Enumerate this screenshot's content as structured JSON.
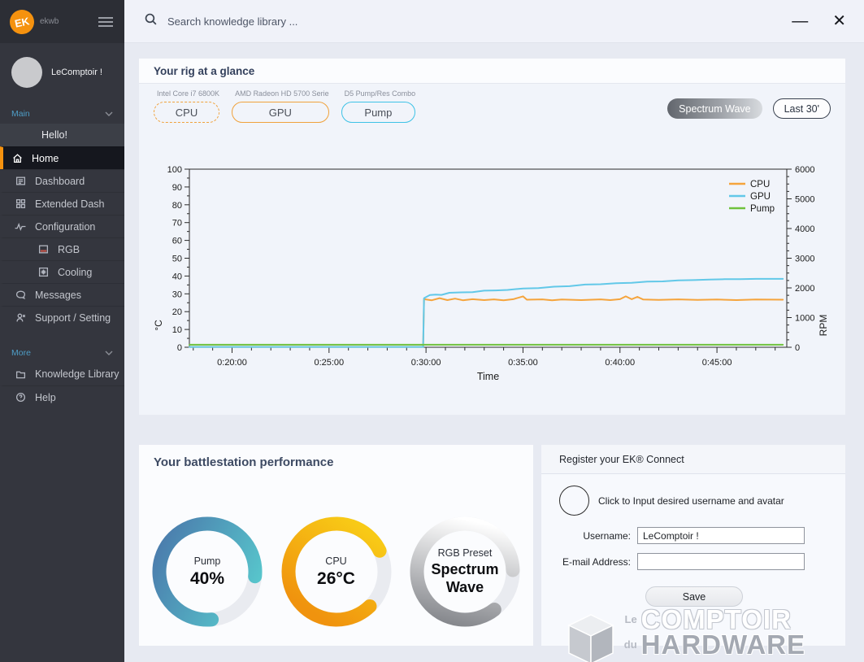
{
  "window": {
    "minimize_glyph": "—",
    "close_glyph": "✕"
  },
  "topbar": {
    "search_placeholder": "Search knowledge library ..."
  },
  "sidebar": {
    "brand": {
      "logo_text": "EK",
      "name": "ekwb"
    },
    "profile": {
      "name": "LeComptoir !"
    },
    "sections": [
      {
        "label": "Main",
        "items": [
          {
            "label": "Hello!"
          },
          {
            "label": "Home"
          },
          {
            "label": "Dashboard"
          },
          {
            "label": "Extended Dash"
          },
          {
            "label": "Configuration"
          },
          {
            "label": "RGB"
          },
          {
            "label": "Cooling"
          },
          {
            "label": "Messages"
          },
          {
            "label": "Support / Setting"
          }
        ]
      },
      {
        "label": "More",
        "items": [
          {
            "label": "Knowledge Library"
          },
          {
            "label": "Help"
          }
        ]
      }
    ]
  },
  "rig": {
    "title": "Your rig at a glance",
    "devices": [
      {
        "name": "Intel Core i7 6800K",
        "button": "CPU"
      },
      {
        "name": "AMD Radeon HD 5700 Serie",
        "button": "GPU"
      },
      {
        "name": "D5 Pump/Res Combo",
        "button": "Pump"
      }
    ],
    "preset_button": "Spectrum Wave",
    "range_button": "Last 30'"
  },
  "chart_data": {
    "type": "line",
    "xlabel": "Time",
    "x": {
      "lim": [
        17.8,
        48.6
      ],
      "minor_step": 1
    },
    "x_ticks": [
      {
        "v": 20,
        "label": "0:20:00"
      },
      {
        "v": 25,
        "label": "0:25:00"
      },
      {
        "v": 30,
        "label": "0:30:00"
      },
      {
        "v": 35,
        "label": "0:35:00"
      },
      {
        "v": 40,
        "label": "0:40:00"
      },
      {
        "v": 45,
        "label": "0:45:00"
      }
    ],
    "y_left": {
      "lim": [
        0,
        100
      ],
      "step": 10,
      "minor_step": 5,
      "label": "°C"
    },
    "y_right": {
      "lim": [
        0,
        6000
      ],
      "step": 1000,
      "minor_step": 250,
      "label": "RPM"
    },
    "legend_position": "top-right-inside",
    "grid": false,
    "series": [
      {
        "name": "CPU",
        "color": "#f5a43c",
        "axis": "left",
        "points": [
          [
            17.8,
            0.2
          ],
          [
            29.85,
            0.2
          ],
          [
            29.9,
            27.0
          ],
          [
            30.3,
            26.4
          ],
          [
            30.7,
            27.6
          ],
          [
            31.1,
            26.5
          ],
          [
            31.5,
            27.3
          ],
          [
            31.9,
            26.4
          ],
          [
            32.4,
            27.0
          ],
          [
            33.0,
            26.5
          ],
          [
            33.5,
            26.9
          ],
          [
            34.0,
            26.4
          ],
          [
            34.5,
            27.0
          ],
          [
            35.0,
            28.6
          ],
          [
            35.2,
            26.7
          ],
          [
            36.0,
            26.9
          ],
          [
            36.5,
            26.4
          ],
          [
            37.0,
            26.8
          ],
          [
            38.0,
            26.5
          ],
          [
            39.0,
            26.9
          ],
          [
            39.5,
            26.5
          ],
          [
            40.0,
            27.0
          ],
          [
            40.3,
            28.6
          ],
          [
            40.6,
            27.0
          ],
          [
            40.9,
            28.3
          ],
          [
            41.2,
            26.8
          ],
          [
            42.0,
            26.6
          ],
          [
            43.0,
            26.9
          ],
          [
            44.0,
            26.6
          ],
          [
            45.0,
            26.8
          ],
          [
            46.0,
            26.5
          ],
          [
            47.0,
            26.8
          ],
          [
            48.4,
            26.7
          ]
        ]
      },
      {
        "name": "GPU",
        "color": "#62c8e8",
        "axis": "left",
        "points": [
          [
            17.8,
            0.2
          ],
          [
            29.85,
            0.2
          ],
          [
            29.9,
            27.6
          ],
          [
            30.2,
            29.3
          ],
          [
            30.5,
            29.6
          ],
          [
            30.8,
            29.4
          ],
          [
            31.2,
            30.6
          ],
          [
            31.8,
            30.8
          ],
          [
            32.4,
            30.9
          ],
          [
            33.0,
            31.8
          ],
          [
            33.6,
            31.9
          ],
          [
            34.2,
            32.2
          ],
          [
            35.0,
            33.0
          ],
          [
            35.8,
            33.2
          ],
          [
            36.6,
            34.0
          ],
          [
            37.4,
            34.3
          ],
          [
            38.2,
            35.2
          ],
          [
            39.0,
            35.4
          ],
          [
            39.8,
            36.0
          ],
          [
            40.6,
            36.2
          ],
          [
            41.4,
            36.9
          ],
          [
            42.2,
            37.0
          ],
          [
            43.0,
            37.6
          ],
          [
            43.8,
            37.7
          ],
          [
            44.6,
            38.0
          ],
          [
            45.4,
            38.2
          ],
          [
            46.2,
            38.2
          ],
          [
            47.0,
            38.4
          ],
          [
            48.4,
            38.4
          ]
        ]
      },
      {
        "name": "Pump",
        "color": "#6fc13d",
        "axis": "left",
        "points": [
          [
            17.8,
            1.4
          ],
          [
            48.4,
            1.4
          ]
        ]
      }
    ]
  },
  "performance": {
    "title": "Your battlestation performance",
    "gauges": [
      {
        "label": "Pump",
        "value": "40%",
        "frac": 0.78,
        "rotate": 84.6,
        "color_from": "#58c8cd",
        "color_to": "#4b7dad"
      },
      {
        "label": "CPU",
        "value": "26°C",
        "frac": 0.8,
        "rotate": 46,
        "color_from": "#f8ca16",
        "color_to": "#f0930e"
      },
      {
        "label": "RGB Preset",
        "value": "Spectrum Wave",
        "frac": 0.85,
        "rotate": 52,
        "color_from": "#ffffff",
        "color_to": "#85878c"
      }
    ],
    "track_color": "#e9ebf0"
  },
  "register": {
    "title": "Register your EK® Connect",
    "avatar_hint": "Click to Input desired username and avatar",
    "username_label": "Username:",
    "username_value": "LeComptoir !",
    "email_label": "E-mail Address:",
    "email_value": "",
    "save_button": "Save"
  },
  "watermark": {
    "line1_prefix": "Le",
    "line1": "COMPTOIR",
    "line2_prefix": "du",
    "line2": "HARDWARE"
  }
}
